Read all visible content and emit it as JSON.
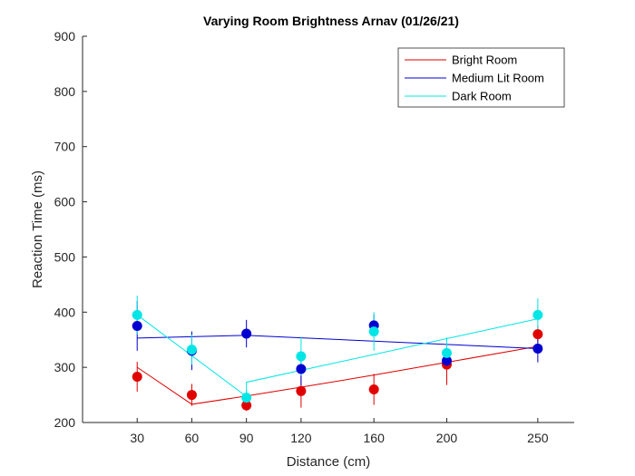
{
  "chart_data": {
    "type": "scatter",
    "title": "Varying Room Brightness Arnav (01/26/21)",
    "xlabel": "Distance (cm)",
    "ylabel": "Reaction Time (ms)",
    "x_ticks": [
      30,
      60,
      90,
      120,
      160,
      200,
      250
    ],
    "y_ticks": [
      200,
      300,
      400,
      500,
      600,
      700,
      800,
      900
    ],
    "xlim": [
      0,
      270
    ],
    "ylim": [
      200,
      900
    ],
    "grid": false,
    "legend_position": "top-right",
    "series": [
      {
        "name": "Bright Room",
        "color": "#e00000",
        "points": [
          {
            "x": 30,
            "y": 283,
            "err": 27
          },
          {
            "x": 60,
            "y": 250,
            "err": 20
          },
          {
            "x": 90,
            "y": 231,
            "err": 10
          },
          {
            "x": 120,
            "y": 257,
            "err": 30
          },
          {
            "x": 160,
            "y": 260,
            "err": 28
          },
          {
            "x": 200,
            "y": 305,
            "err": 37
          },
          {
            "x": 250,
            "y": 360,
            "err": 15
          }
        ],
        "fit": [
          [
            30,
            300
          ],
          [
            60,
            233
          ],
          [
            90,
            248
          ],
          [
            120,
            264
          ],
          [
            160,
            286
          ],
          [
            200,
            309
          ],
          [
            250,
            338
          ]
        ]
      },
      {
        "name": "Medium Lit Room",
        "color": "#0000d0",
        "points": [
          {
            "x": 30,
            "y": 375,
            "err": 45
          },
          {
            "x": 60,
            "y": 330,
            "err": 35
          },
          {
            "x": 90,
            "y": 361,
            "err": 25
          },
          {
            "x": 120,
            "y": 297,
            "err": 30
          },
          {
            "x": 160,
            "y": 376,
            "err": 20
          },
          {
            "x": 200,
            "y": 312,
            "err": 15
          },
          {
            "x": 250,
            "y": 334,
            "err": 25
          }
        ],
        "fit": [
          [
            30,
            353
          ],
          [
            90,
            358
          ],
          [
            250,
            334
          ]
        ]
      },
      {
        "name": "Dark Room",
        "color": "#00e5e5",
        "points": [
          {
            "x": 30,
            "y": 395,
            "err": 35
          },
          {
            "x": 60,
            "y": 332,
            "err": 27
          },
          {
            "x": 90,
            "y": 245,
            "err": 15
          },
          {
            "x": 120,
            "y": 320,
            "err": 35
          },
          {
            "x": 160,
            "y": 365,
            "err": 35
          },
          {
            "x": 200,
            "y": 326,
            "err": 28
          },
          {
            "x": 250,
            "y": 395,
            "err": 30
          }
        ],
        "fit": [
          [
            30,
            395
          ],
          [
            90,
            247
          ],
          [
            90,
            273
          ],
          [
            250,
            388
          ]
        ]
      }
    ]
  }
}
